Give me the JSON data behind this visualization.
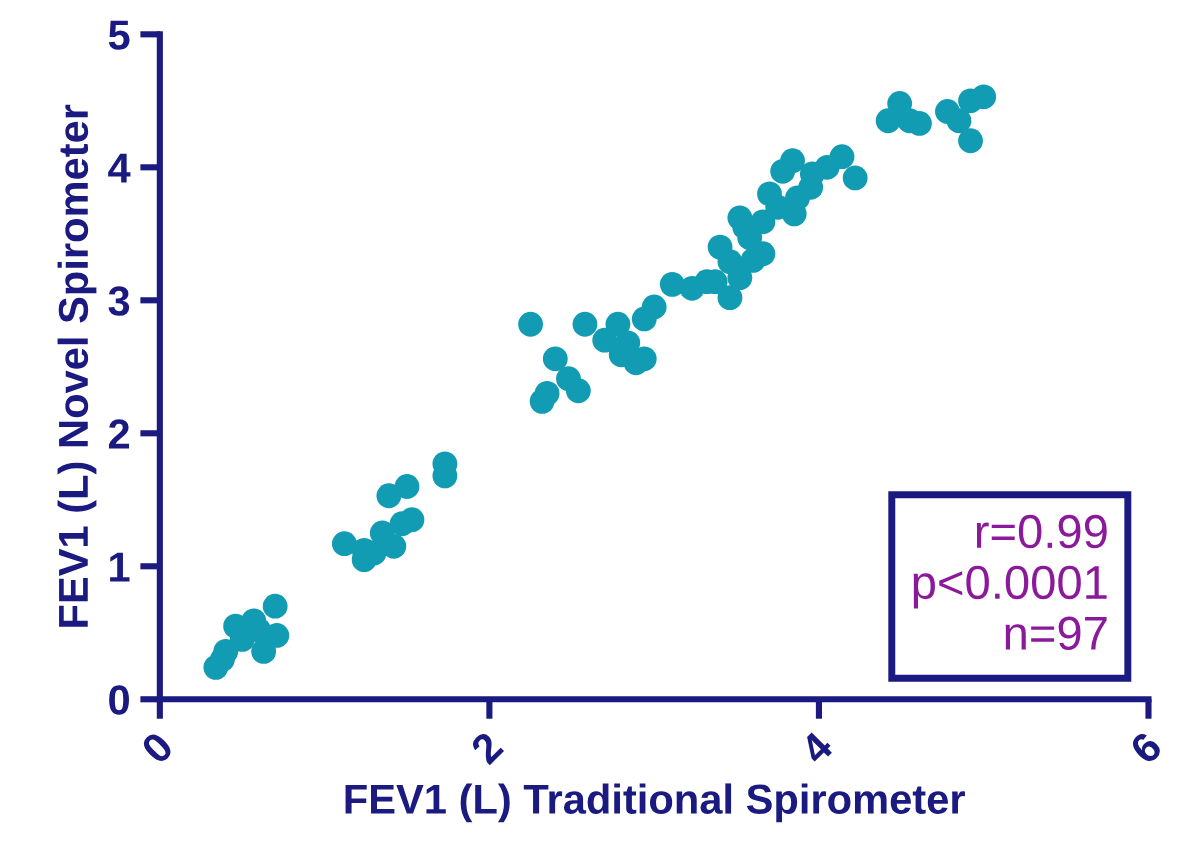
{
  "chart_data": {
    "type": "scatter",
    "xlabel": "FEV1 (L) Traditional Spirometer",
    "ylabel": "FEV1 (L) Novel Spirometer",
    "xlim": [
      0,
      6
    ],
    "ylim": [
      0,
      5
    ],
    "xticks": [
      0,
      2,
      4,
      6
    ],
    "yticks": [
      0,
      1,
      2,
      3,
      4,
      5
    ],
    "grid": false,
    "legend": false,
    "marker": "circle",
    "annotations": [
      "r=0.99\np<0.0001\nn=97"
    ],
    "series": [
      {
        "color": "#129cb3",
        "x": [
          0.34,
          0.38,
          0.4,
          0.46,
          0.5,
          0.57,
          0.6,
          0.63,
          0.7,
          0.71,
          1.12,
          1.24,
          1.24,
          1.3,
          1.35,
          1.39,
          1.42,
          1.47,
          1.5,
          1.53,
          1.73,
          1.73,
          2.25,
          2.32,
          2.35,
          2.4,
          2.48,
          2.54,
          2.58,
          2.7,
          2.78,
          2.8,
          2.84,
          2.89,
          2.94,
          2.94,
          3.0,
          3.11,
          3.23,
          3.32,
          3.37,
          3.4,
          3.46,
          3.46,
          3.52,
          3.52,
          3.55,
          3.58,
          3.6,
          3.66,
          3.66,
          3.7,
          3.75,
          3.78,
          3.84,
          3.85,
          3.87,
          3.95,
          3.96,
          4.05,
          4.14,
          4.22,
          4.42,
          4.49,
          4.55,
          4.61,
          4.78,
          4.85,
          4.92,
          4.92,
          5.0
        ],
        "values": [
          0.24,
          0.3,
          0.36,
          0.55,
          0.45,
          0.59,
          0.52,
          0.36,
          0.7,
          0.48,
          1.17,
          1.12,
          1.05,
          1.1,
          1.25,
          1.53,
          1.15,
          1.32,
          1.6,
          1.35,
          1.77,
          1.68,
          2.82,
          2.24,
          2.3,
          2.56,
          2.41,
          2.32,
          2.82,
          2.7,
          2.82,
          2.59,
          2.68,
          2.53,
          2.86,
          2.56,
          2.95,
          3.12,
          3.09,
          3.14,
          3.14,
          3.4,
          3.29,
          3.02,
          3.62,
          3.17,
          3.55,
          3.47,
          3.3,
          3.59,
          3.35,
          3.8,
          3.7,
          3.97,
          4.05,
          3.65,
          3.77,
          3.85,
          3.95,
          4.0,
          4.08,
          3.92,
          4.35,
          4.48,
          4.35,
          4.33,
          4.42,
          4.35,
          4.2,
          4.5,
          4.53
        ]
      }
    ]
  }
}
